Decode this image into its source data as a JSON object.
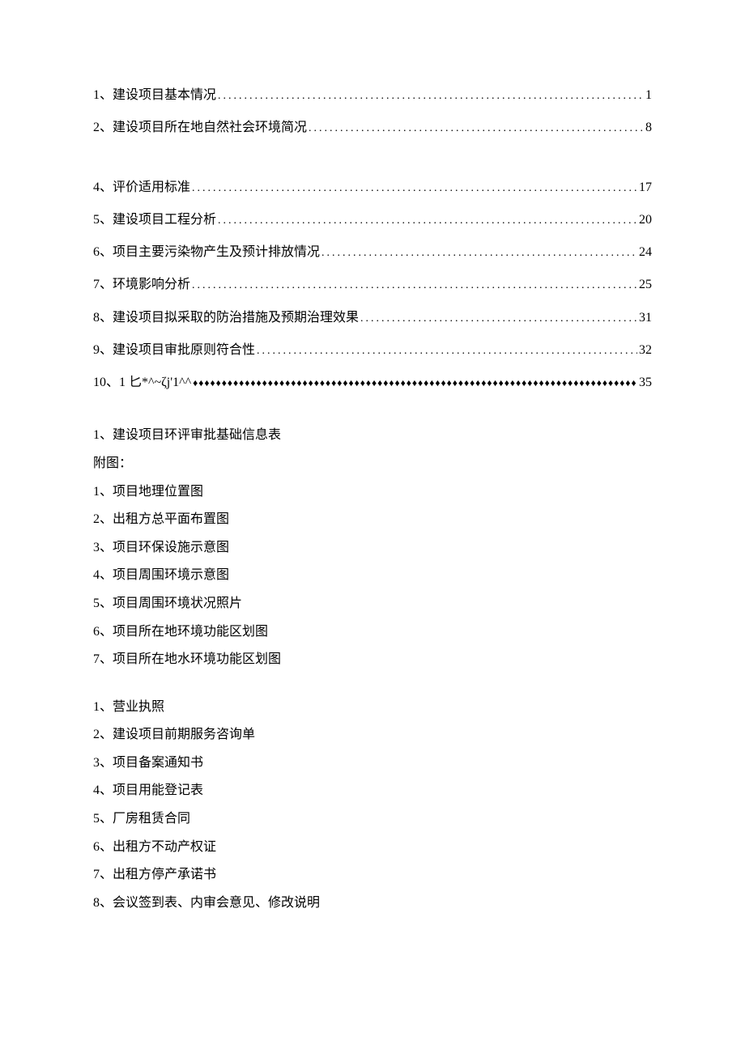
{
  "toc": {
    "items": [
      {
        "num": "1、",
        "title": "建设项目基本情况",
        "page": "1"
      },
      {
        "num": "2、",
        "title": "建设项目所在地自然社会环境简况",
        "page": "8"
      }
    ],
    "items2": [
      {
        "num": "4、",
        "title": "评价适用标准",
        "page": "17"
      },
      {
        "num": "5、",
        "title": "建设项目工程分析",
        "page": "20"
      },
      {
        "num": "6、",
        "title": "项目主要污染物产生及预计排放情况",
        "page": "24"
      },
      {
        "num": "7、",
        "title": "环境影响分析",
        "page": "25"
      },
      {
        "num": "8、",
        "title": "建设项目拟采取的防治措施及预期治理效果",
        "page": "31"
      },
      {
        "num": "9、",
        "title": "建设项目审批原则符合性",
        "page": "32"
      }
    ],
    "specialItem": {
      "num": "10、",
      "title": "1 匕*^~ζj'1^^",
      "page": "35"
    }
  },
  "appendix1": {
    "header": "1、建设项目环评审批基础信息表",
    "subheader": "附图：",
    "items": [
      "1、项目地理位置图",
      "2、出租方总平面布置图",
      "3、项目环保设施示意图",
      "4、项目周围环境示意图",
      "5、项目周围环境状况照片",
      "6、项目所在地环境功能区划图",
      "7、项目所在地水环境功能区划图"
    ]
  },
  "appendix2": {
    "items": [
      "1、营业执照",
      "2、建设项目前期服务咨询单",
      "3、项目备案通知书",
      "4、项目用能登记表",
      "5、厂房租赁合同",
      "6、出租方不动产权证",
      "7、出租方停产承诺书",
      "8、会议签到表、内审会意见、修改说明"
    ]
  },
  "style": {
    "dotFill": "............................................................................................................",
    "diamondFill": "♦♦♦♦♦♦♦♦♦♦♦♦♦♦♦♦♦♦♦♦♦♦♦♦♦♦♦♦♦♦♦♦♦♦♦♦♦♦♦♦♦♦♦♦♦♦♦♦♦♦♦♦♦♦♦♦♦♦♦♦♦♦♦♦♦♦♦♦♦♦♦♦♦♦♦♦♦♦♦♦"
  }
}
